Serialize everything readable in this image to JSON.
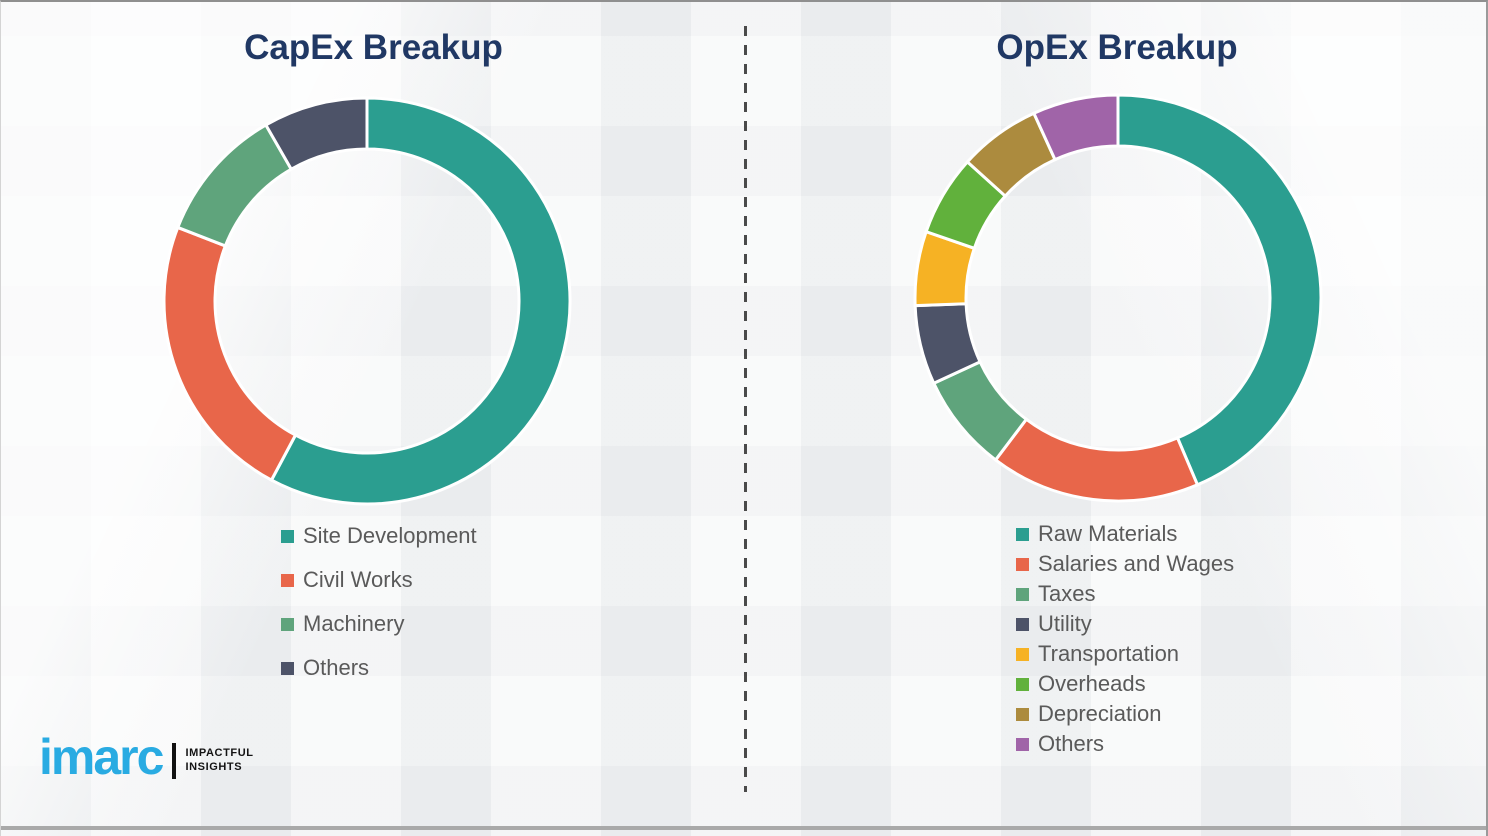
{
  "page": {
    "background_color": "#f2f3f4",
    "bottom_rule_color": "#a9a9a9",
    "divider": "vertical-dashed",
    "divider_color": "#4a4a4a"
  },
  "titles": {
    "color": "#203864"
  },
  "legend": {
    "text_color": "#5a5a5a"
  },
  "chart_data": [
    {
      "type": "pie",
      "variant": "donut",
      "title": "CapEx Breakup",
      "categories": [
        "Site Development",
        "Civil Works",
        "Machinery",
        "Others"
      ],
      "values": [
        57.8,
        23.1,
        10.8,
        8.3
      ],
      "colors": [
        "#2B9E90",
        "#E8664A",
        "#5FA47C",
        "#4D5368"
      ],
      "start_angle_deg": 0,
      "direction": "clockwise",
      "inner_radius_ratio": 0.75,
      "segment_gap_color": "#ffffff",
      "legend_position": "below-left",
      "data_labels": false
    },
    {
      "type": "pie",
      "variant": "donut",
      "title": "OpEx Breakup",
      "categories": [
        "Raw Materials",
        "Salaries and Wages",
        "Taxes",
        "Utility",
        "Transportation",
        "Overheads",
        "Depreciation",
        "Others"
      ],
      "values": [
        43.6,
        16.7,
        7.8,
        6.3,
        5.9,
        6.4,
        6.5,
        6.8
      ],
      "colors": [
        "#2B9E90",
        "#E8664A",
        "#5FA47C",
        "#4D5368",
        "#F6B224",
        "#61B13C",
        "#AC8B3E",
        "#A064A8"
      ],
      "start_angle_deg": 0,
      "direction": "clockwise",
      "inner_radius_ratio": 0.75,
      "segment_gap_color": "#ffffff",
      "legend_position": "below-left",
      "data_labels": false
    }
  ],
  "branding": {
    "logo_text": "imarc",
    "logo_color": "#29ABE2",
    "tagline_line1": "IMPACTFUL",
    "tagline_line2": "INSIGHTS"
  }
}
